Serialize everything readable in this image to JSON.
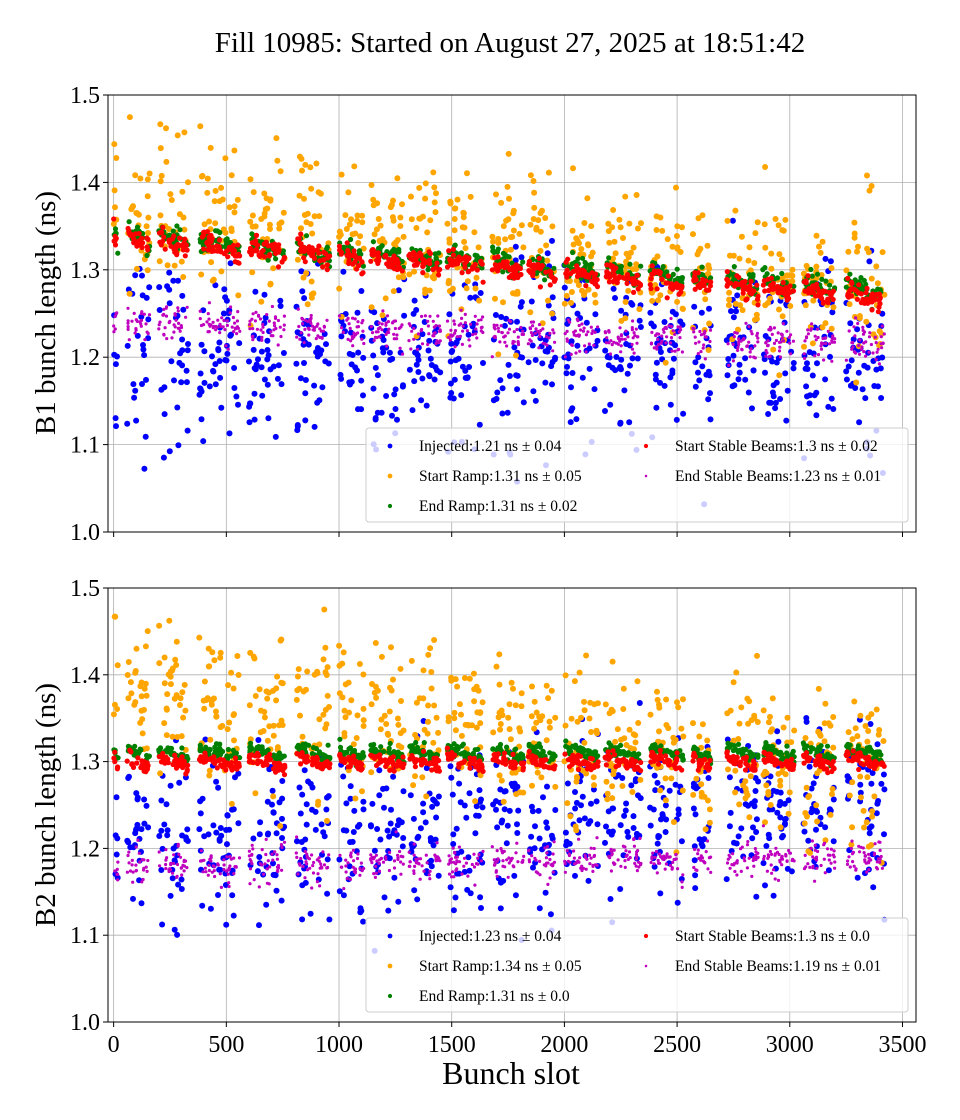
{
  "chart_data": [
    {
      "type": "scatter",
      "title": "Fill 10985: Started on August 27, 2025 at 18:51:42",
      "xlabel": "",
      "ylabel": "B1 bunch length (ns)",
      "xlim": [
        -25,
        3560
      ],
      "ylim": [
        1.0,
        1.5
      ],
      "yticks": [
        "1.0",
        "1.1",
        "1.2",
        "1.3",
        "1.4",
        "1.5"
      ],
      "xticks": [
        0,
        500,
        1000,
        1500,
        2000,
        2500,
        3000,
        3500
      ],
      "grid": true,
      "legend_placement": "lower-right",
      "trains": [
        [
          0,
          20
        ],
        [
          60,
          160
        ],
        [
          200,
          330
        ],
        [
          380,
          560
        ],
        [
          600,
          760
        ],
        [
          810,
          960
        ],
        [
          1000,
          1110
        ],
        [
          1140,
          1290
        ],
        [
          1310,
          1450
        ],
        [
          1480,
          1640
        ],
        [
          1680,
          1820
        ],
        [
          1840,
          1960
        ],
        [
          2000,
          2150
        ],
        [
          2180,
          2340
        ],
        [
          2380,
          2530
        ],
        [
          2570,
          2650
        ],
        [
          2720,
          2860
        ],
        [
          2880,
          3020
        ],
        [
          3060,
          3200
        ],
        [
          3250,
          3420
        ]
      ],
      "series": [
        {
          "name": "Injected:1.21 ns ± 0.04",
          "color": "#0000ff",
          "level": [
            1.2,
            1.21
          ],
          "spread": 0.045
        },
        {
          "name": "Start Ramp:1.31 ns ± 0.05",
          "color": "#ffa500",
          "level": [
            1.37,
            1.28
          ],
          "spread": 0.04
        },
        {
          "name": "End Ramp:1.31 ns ± 0.02",
          "color": "#008000",
          "level": [
            1.34,
            1.275
          ],
          "spread": 0.006
        },
        {
          "name": "Start Stable Beams:1.3 ns ± 0.02",
          "color": "#ff0000",
          "level": [
            1.335,
            1.27
          ],
          "spread": 0.006
        },
        {
          "name": "End Stable Beams:1.23 ns ± 0.01",
          "color": "#bf00bf",
          "level": [
            1.24,
            1.215
          ],
          "spread": 0.01
        }
      ]
    },
    {
      "type": "scatter",
      "xlabel": "Bunch slot",
      "ylabel": "B2 bunch length (ns)",
      "xlim": [
        -25,
        3560
      ],
      "ylim": [
        1.0,
        1.5
      ],
      "yticks": [
        "1.0",
        "1.1",
        "1.2",
        "1.3",
        "1.4",
        "1.5"
      ],
      "xticks": [
        "0",
        "500",
        "1000",
        "1500",
        "2000",
        "2500",
        "3000",
        "3500"
      ],
      "grid": true,
      "legend_placement": "lower-right",
      "trains": [
        [
          0,
          20
        ],
        [
          60,
          160
        ],
        [
          200,
          330
        ],
        [
          380,
          560
        ],
        [
          600,
          760
        ],
        [
          810,
          960
        ],
        [
          1000,
          1110
        ],
        [
          1140,
          1290
        ],
        [
          1310,
          1450
        ],
        [
          1480,
          1640
        ],
        [
          1680,
          1820
        ],
        [
          1840,
          1960
        ],
        [
          2000,
          2150
        ],
        [
          2180,
          2340
        ],
        [
          2380,
          2530
        ],
        [
          2570,
          2650
        ],
        [
          2720,
          2860
        ],
        [
          2880,
          3020
        ],
        [
          3060,
          3200
        ],
        [
          3250,
          3420
        ]
      ],
      "series": [
        {
          "name": "Injected:1.23 ns ± 0.04",
          "color": "#0000ff",
          "level": [
            1.2,
            1.25
          ],
          "spread": 0.045
        },
        {
          "name": "Start Ramp:1.34 ns ± 0.05",
          "color": "#ffa500",
          "level": [
            1.38,
            1.29
          ],
          "spread": 0.04
        },
        {
          "name": "End Ramp:1.31 ns ± 0.0",
          "color": "#008000",
          "level": [
            1.31,
            1.31
          ],
          "spread": 0.004
        },
        {
          "name": "Start Stable Beams:1.3 ns ± 0.0",
          "color": "#ff0000",
          "level": [
            1.3,
            1.3
          ],
          "spread": 0.004
        },
        {
          "name": "End Stable Beams:1.19 ns ± 0.01",
          "color": "#bf00bf",
          "level": [
            1.18,
            1.19
          ],
          "spread": 0.01
        }
      ]
    }
  ]
}
